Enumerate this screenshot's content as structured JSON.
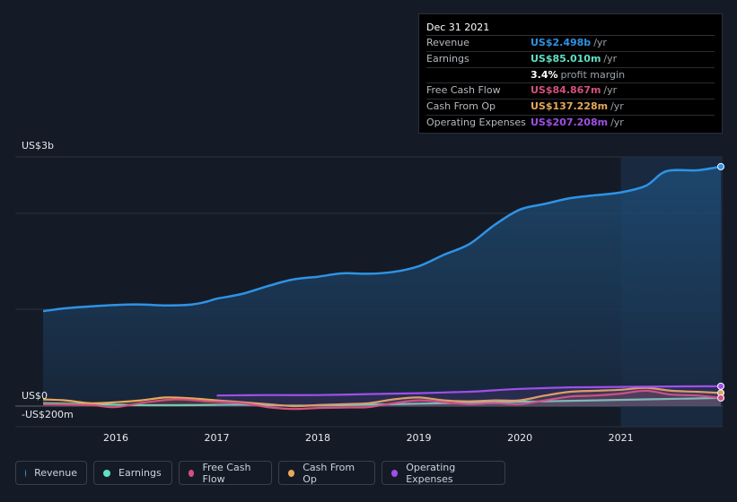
{
  "tooltip": {
    "date": "Dec 31 2021",
    "rows": [
      {
        "label": "Revenue",
        "value": "US$2.498b",
        "unit": "/yr",
        "color": "#2e93e6"
      },
      {
        "label": "Earnings",
        "value": "US$85.010m",
        "unit": "/yr",
        "color": "#5fe0c8"
      },
      {
        "label": "",
        "value": "3.4%",
        "unit": "profit margin",
        "color": "#ffffff"
      },
      {
        "label": "Free Cash Flow",
        "value": "US$84.867m",
        "unit": "/yr",
        "color": "#d4507f"
      },
      {
        "label": "Cash From Op",
        "value": "US$137.228m",
        "unit": "/yr",
        "color": "#e6a85a"
      },
      {
        "label": "Operating Expenses",
        "value": "US$207.208m",
        "unit": "/yr",
        "color": "#a04fe8"
      }
    ]
  },
  "legend": [
    {
      "label": "Revenue",
      "color": "#2e93e6"
    },
    {
      "label": "Earnings",
      "color": "#5fe0c8"
    },
    {
      "label": "Free Cash Flow",
      "color": "#d4507f"
    },
    {
      "label": "Cash From Op",
      "color": "#e6a85a"
    },
    {
      "label": "Operating Expenses",
      "color": "#a04fe8"
    }
  ],
  "chart_data": {
    "type": "line",
    "ylabels": {
      "top": "US$3b",
      "zero": "US$0",
      "bottom": "-US$200m"
    },
    "ylim": [
      -200,
      2600
    ],
    "xlim": [
      2015.28,
      2021.99
    ],
    "xticks": [
      "2016",
      "2017",
      "2018",
      "2019",
      "2020",
      "2021"
    ],
    "highlight_from": 2021.0,
    "series": [
      {
        "name": "Revenue",
        "color": "#2e93e6",
        "fill": true,
        "x": [
          2015.28,
          2015.5,
          2015.75,
          2016.0,
          2016.25,
          2016.5,
          2016.75,
          2016.9,
          2017.0,
          2017.25,
          2017.5,
          2017.75,
          2018.0,
          2018.25,
          2018.5,
          2018.75,
          2019.0,
          2019.25,
          2019.5,
          2019.75,
          2020.0,
          2020.25,
          2020.5,
          2020.75,
          2021.0,
          2021.25,
          2021.45,
          2021.75,
          2021.99
        ],
        "values": [
          990,
          1020,
          1040,
          1055,
          1060,
          1050,
          1060,
          1090,
          1120,
          1170,
          1250,
          1320,
          1350,
          1385,
          1380,
          1400,
          1460,
          1580,
          1690,
          1890,
          2050,
          2110,
          2170,
          2200,
          2230,
          2300,
          2450,
          2460,
          2498
        ]
      },
      {
        "name": "Earnings",
        "color": "#5fe0c8",
        "x": [
          2015.28,
          2015.75,
          2016.25,
          2016.75,
          2017.25,
          2017.75,
          2018.25,
          2018.75,
          2019.25,
          2019.75,
          2020.25,
          2020.75,
          2021.25,
          2021.99
        ],
        "values": [
          30,
          20,
          10,
          10,
          15,
          5,
          10,
          20,
          30,
          40,
          50,
          60,
          70,
          85
        ]
      },
      {
        "name": "Free Cash Flow",
        "color": "#d4507f",
        "x": [
          2015.28,
          2015.75,
          2016.0,
          2016.3,
          2016.6,
          2016.9,
          2017.25,
          2017.5,
          2017.75,
          2018.0,
          2018.25,
          2018.5,
          2018.75,
          2019.0,
          2019.25,
          2019.5,
          2019.75,
          2020.0,
          2020.25,
          2020.5,
          2020.75,
          2021.0,
          2021.25,
          2021.5,
          2021.75,
          2021.99
        ],
        "values": [
          20,
          10,
          -10,
          40,
          70,
          50,
          30,
          -10,
          -30,
          -20,
          -15,
          -10,
          30,
          60,
          40,
          20,
          30,
          20,
          60,
          100,
          110,
          130,
          160,
          120,
          110,
          85
        ]
      },
      {
        "name": "Cash From Op",
        "color": "#e6a85a",
        "x": [
          2015.28,
          2015.5,
          2015.75,
          2016.0,
          2016.25,
          2016.5,
          2016.75,
          2017.0,
          2017.25,
          2017.5,
          2017.75,
          2018.0,
          2018.25,
          2018.5,
          2018.75,
          2019.0,
          2019.25,
          2019.5,
          2019.75,
          2020.0,
          2020.25,
          2020.5,
          2020.75,
          2021.0,
          2021.25,
          2021.5,
          2021.75,
          2021.99
        ],
        "values": [
          70,
          60,
          30,
          40,
          60,
          90,
          80,
          60,
          40,
          20,
          0,
          10,
          20,
          30,
          70,
          90,
          60,
          50,
          60,
          60,
          110,
          150,
          160,
          170,
          190,
          160,
          150,
          137
        ]
      },
      {
        "name": "Operating Expenses",
        "color": "#a04fe8",
        "x": [
          2017.0,
          2017.5,
          2018.0,
          2018.5,
          2019.0,
          2019.5,
          2019.75,
          2020.0,
          2020.5,
          2021.0,
          2021.5,
          2021.99
        ],
        "values": [
          110,
          115,
          115,
          125,
          135,
          150,
          165,
          180,
          195,
          200,
          205,
          207
        ]
      }
    ]
  }
}
